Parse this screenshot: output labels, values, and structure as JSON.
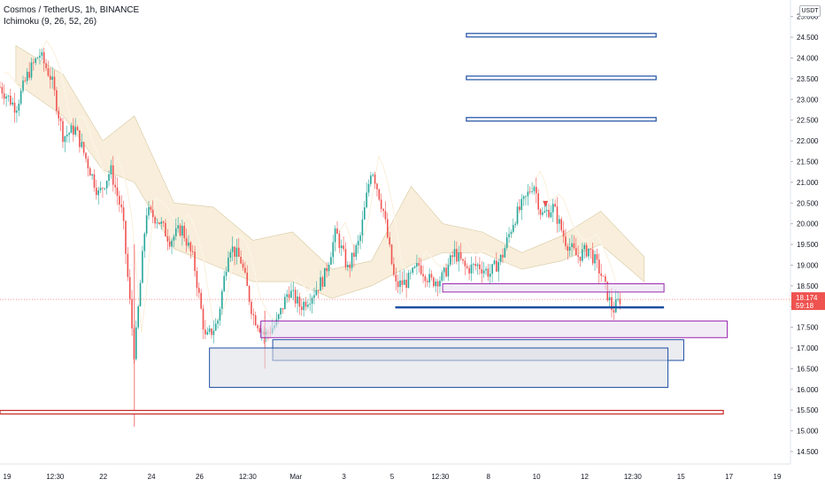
{
  "header": {
    "title": "Cosmos / TetherUS, 1h, BINANCE",
    "indicator": "Ichimoku (9, 26, 52, 26)",
    "currency_badge": "USDT"
  },
  "price_label": {
    "value": "18.174",
    "countdown": "59:18"
  },
  "colors": {
    "up": "#26a69a",
    "down": "#ef5350",
    "blue_line": "#1e4fa3",
    "red_line": "#c62828",
    "purple": "#9c27b0",
    "cloud_fill": "#f3e3c3",
    "ichi_line": "#f5f5f5",
    "label_bg": "#ef5350"
  },
  "chart_data": {
    "type": "candlestick",
    "symbol": "Cosmos / TetherUS",
    "timeframe": "1h",
    "exchange": "BINANCE",
    "ylim": [
      14.2,
      25.4
    ],
    "y_ticks": [
      "25.000",
      "24.500",
      "24.000",
      "23.500",
      "23.000",
      "22.500",
      "22.000",
      "21.500",
      "21.000",
      "20.500",
      "20.000",
      "19.500",
      "19.000",
      "18.500",
      "18.000",
      "17.500",
      "17.000",
      "16.500",
      "16.000",
      "15.500",
      "15.000",
      "14.500"
    ],
    "x_ticks": [
      "19",
      "12:30",
      "22",
      "24",
      "26",
      "12:30",
      "Mar",
      "3",
      "5",
      "12:30",
      "8",
      "10",
      "12",
      "12:30",
      "15",
      "17",
      "19"
    ],
    "last_price": 18.174,
    "price_path": [
      {
        "t": 0.0,
        "p": 23.3
      },
      {
        "t": 0.02,
        "p": 22.8
      },
      {
        "t": 0.035,
        "p": 23.6
      },
      {
        "t": 0.05,
        "p": 24.1
      },
      {
        "t": 0.065,
        "p": 23.5
      },
      {
        "t": 0.08,
        "p": 22.1
      },
      {
        "t": 0.095,
        "p": 22.3
      },
      {
        "t": 0.11,
        "p": 21.5
      },
      {
        "t": 0.125,
        "p": 20.7
      },
      {
        "t": 0.14,
        "p": 21.3
      },
      {
        "t": 0.155,
        "p": 20.2
      },
      {
        "t": 0.17,
        "p": 16.8
      },
      {
        "t": 0.185,
        "p": 20.3
      },
      {
        "t": 0.2,
        "p": 20.1
      },
      {
        "t": 0.215,
        "p": 19.6
      },
      {
        "t": 0.23,
        "p": 19.9
      },
      {
        "t": 0.245,
        "p": 19.1
      },
      {
        "t": 0.26,
        "p": 17.2
      },
      {
        "t": 0.275,
        "p": 17.6
      },
      {
        "t": 0.29,
        "p": 19.5
      },
      {
        "t": 0.305,
        "p": 19.1
      },
      {
        "t": 0.32,
        "p": 17.8
      },
      {
        "t": 0.335,
        "p": 17.3
      },
      {
        "t": 0.35,
        "p": 17.6
      },
      {
        "t": 0.365,
        "p": 18.4
      },
      {
        "t": 0.38,
        "p": 18.0
      },
      {
        "t": 0.395,
        "p": 18.3
      },
      {
        "t": 0.41,
        "p": 18.7
      },
      {
        "t": 0.425,
        "p": 19.8
      },
      {
        "t": 0.44,
        "p": 18.9
      },
      {
        "t": 0.455,
        "p": 19.6
      },
      {
        "t": 0.47,
        "p": 21.4
      },
      {
        "t": 0.485,
        "p": 20.3
      },
      {
        "t": 0.5,
        "p": 18.5
      },
      {
        "t": 0.515,
        "p": 18.6
      },
      {
        "t": 0.53,
        "p": 19.0
      },
      {
        "t": 0.545,
        "p": 18.6
      },
      {
        "t": 0.56,
        "p": 18.7
      },
      {
        "t": 0.575,
        "p": 19.3
      },
      {
        "t": 0.59,
        "p": 18.9
      },
      {
        "t": 0.605,
        "p": 19.0
      },
      {
        "t": 0.62,
        "p": 18.8
      },
      {
        "t": 0.635,
        "p": 19.2
      },
      {
        "t": 0.65,
        "p": 20.1
      },
      {
        "t": 0.665,
        "p": 20.6
      },
      {
        "t": 0.675,
        "p": 21.0
      },
      {
        "t": 0.685,
        "p": 20.2
      },
      {
        "t": 0.7,
        "p": 20.4
      },
      {
        "t": 0.715,
        "p": 19.6
      },
      {
        "t": 0.73,
        "p": 19.2
      },
      {
        "t": 0.745,
        "p": 19.4
      },
      {
        "t": 0.76,
        "p": 18.8
      },
      {
        "t": 0.775,
        "p": 17.9
      },
      {
        "t": 0.785,
        "p": 18.2
      }
    ],
    "horizontal_lines": [
      {
        "price": 24.55,
        "x_from": 0.59,
        "x_to": 0.83,
        "color": "blue_line",
        "style": "double"
      },
      {
        "price": 23.52,
        "x_from": 0.59,
        "x_to": 0.83,
        "color": "blue_line",
        "style": "double"
      },
      {
        "price": 22.52,
        "x_from": 0.59,
        "x_to": 0.83,
        "color": "blue_line",
        "style": "double"
      },
      {
        "price": 17.98,
        "x_from": 0.5,
        "x_to": 0.84,
        "color": "blue_line",
        "style": "solid"
      },
      {
        "price": 15.45,
        "x_from": 0.0,
        "x_to": 0.915,
        "color": "red_line",
        "style": "double"
      }
    ],
    "zones": [
      {
        "top": 18.55,
        "bottom": 18.35,
        "x_from": 0.56,
        "x_to": 0.84,
        "color": "purple"
      },
      {
        "top": 17.65,
        "bottom": 17.25,
        "x_from": 0.33,
        "x_to": 0.92,
        "color": "purple"
      },
      {
        "top": 17.2,
        "bottom": 16.7,
        "x_from": 0.345,
        "x_to": 0.865,
        "color": "blue_line"
      },
      {
        "top": 17.0,
        "bottom": 16.05,
        "x_from": 0.265,
        "x_to": 0.845,
        "color": "blue_line"
      }
    ],
    "cloud": [
      {
        "t": 0.02,
        "a": 24.3,
        "b": 23.4
      },
      {
        "t": 0.08,
        "a": 23.6,
        "b": 22.6
      },
      {
        "t": 0.13,
        "a": 22.0,
        "b": 21.3
      },
      {
        "t": 0.17,
        "a": 22.6,
        "b": 21.0
      },
      {
        "t": 0.22,
        "a": 20.5,
        "b": 19.4
      },
      {
        "t": 0.27,
        "a": 20.4,
        "b": 19.0
      },
      {
        "t": 0.32,
        "a": 19.6,
        "b": 18.6
      },
      {
        "t": 0.37,
        "a": 19.8,
        "b": 18.6
      },
      {
        "t": 0.42,
        "a": 18.9,
        "b": 18.2
      },
      {
        "t": 0.47,
        "a": 19.1,
        "b": 18.5
      },
      {
        "t": 0.52,
        "a": 20.9,
        "b": 19.0
      },
      {
        "t": 0.56,
        "a": 20.0,
        "b": 19.3
      },
      {
        "t": 0.61,
        "a": 19.8,
        "b": 19.3
      },
      {
        "t": 0.66,
        "a": 19.3,
        "b": 18.9
      },
      {
        "t": 0.71,
        "a": 19.7,
        "b": 19.1
      },
      {
        "t": 0.76,
        "a": 20.3,
        "b": 19.5
      },
      {
        "t": 0.815,
        "a": 19.2,
        "b": 18.6
      }
    ]
  }
}
